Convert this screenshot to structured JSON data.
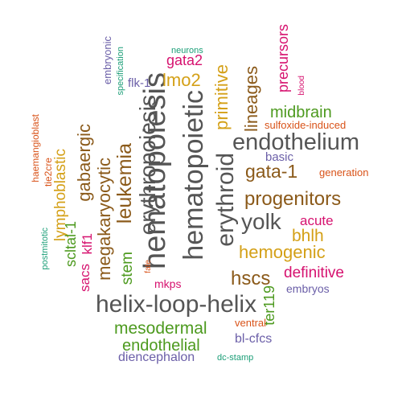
{
  "words": [
    {
      "text": "hematopoiesis",
      "color": "#555555"
    },
    {
      "text": "helix-loop-helix",
      "color": "#555555"
    },
    {
      "text": "hematopoietic",
      "color": "#555555"
    },
    {
      "text": "erythropoiesis",
      "color": "#555555"
    },
    {
      "text": "endothelium",
      "color": "#555555"
    },
    {
      "text": "erythroid",
      "color": "#555555"
    },
    {
      "text": "yolk",
      "color": "#555555"
    },
    {
      "text": "progenitors",
      "color": "#8B5A1A"
    },
    {
      "text": "leukemia",
      "color": "#8B5A1A"
    },
    {
      "text": "megakaryocytic",
      "color": "#8B5A1A"
    },
    {
      "text": "gata-1",
      "color": "#8B5A1A"
    },
    {
      "text": "gabaergic",
      "color": "#8B5A1A"
    },
    {
      "text": "lineages",
      "color": "#8B5A1A"
    },
    {
      "text": "hscs",
      "color": "#8B5A1A"
    },
    {
      "text": "lymphoblastic",
      "color": "#D4A017"
    },
    {
      "text": "primitive",
      "color": "#D4A017"
    },
    {
      "text": "hemogenic",
      "color": "#D4A017"
    },
    {
      "text": "lmo2",
      "color": "#D4A017"
    },
    {
      "text": "bhlh",
      "color": "#D4A017"
    },
    {
      "text": "mesodermal",
      "color": "#4D9A1F"
    },
    {
      "text": "endothelial",
      "color": "#4D9A1F"
    },
    {
      "text": "midbrain",
      "color": "#4D9A1F"
    },
    {
      "text": "stem",
      "color": "#4D9A1F"
    },
    {
      "text": "scltal-1",
      "color": "#4D9A1F"
    },
    {
      "text": "ter119",
      "color": "#4D9A1F"
    },
    {
      "text": "definitive",
      "color": "#D6126F"
    },
    {
      "text": "gata2",
      "color": "#D6126F"
    },
    {
      "text": "acute",
      "color": "#D6126F"
    },
    {
      "text": "precursors",
      "color": "#D6126F"
    },
    {
      "text": "sacs",
      "color": "#D6126F"
    },
    {
      "text": "klf1",
      "color": "#D6126F"
    },
    {
      "text": "mkps",
      "color": "#D6126F"
    },
    {
      "text": "blood",
      "color": "#D6126F"
    },
    {
      "text": "embryos",
      "color": "#6B5FA8"
    },
    {
      "text": "basic",
      "color": "#6B5FA8"
    },
    {
      "text": "bl-cfcs",
      "color": "#6B5FA8"
    },
    {
      "text": "flk-1",
      "color": "#6B5FA8"
    },
    {
      "text": "diencephalon",
      "color": "#6B5FA8"
    },
    {
      "text": "embryonic",
      "color": "#6B5FA8"
    },
    {
      "text": "sulfoxide-induced",
      "color": "#D95319"
    },
    {
      "text": "generation",
      "color": "#D95319"
    },
    {
      "text": "ventral",
      "color": "#D95319"
    },
    {
      "text": "haemangioblast",
      "color": "#D95319"
    },
    {
      "text": "tie2cre",
      "color": "#D95319"
    },
    {
      "text": "fate",
      "color": "#D95319"
    },
    {
      "text": "neurons",
      "color": "#1B9E77"
    },
    {
      "text": "specification",
      "color": "#1B9E77"
    },
    {
      "text": "postmitotic",
      "color": "#1B9E77"
    },
    {
      "text": "dc-stamp",
      "color": "#1B9E77"
    }
  ]
}
